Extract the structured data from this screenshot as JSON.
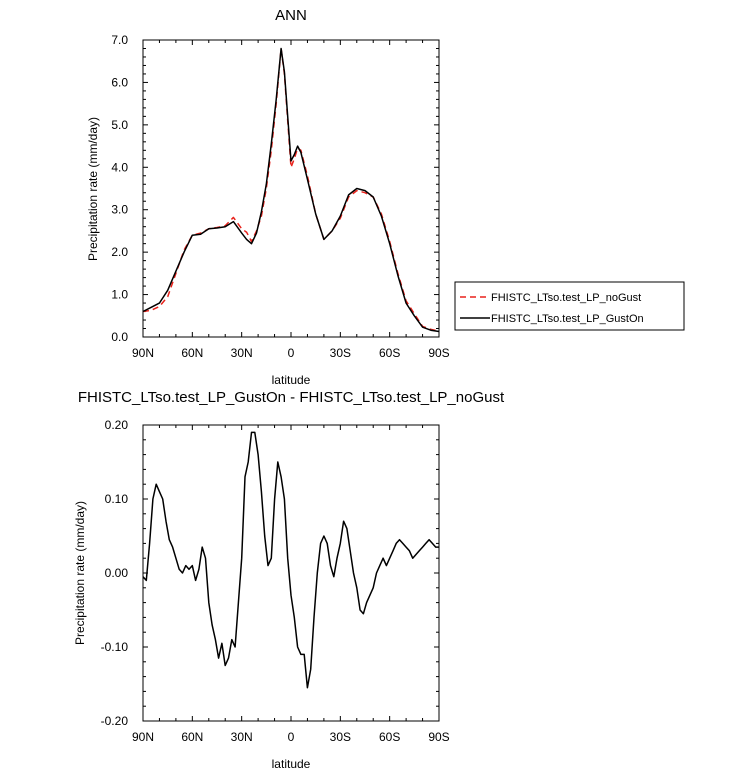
{
  "colors": {
    "noGust": "#e8221b",
    "gustOn": "#000000"
  },
  "chart_data": [
    {
      "type": "line",
      "title": "ANN",
      "xlabel": "latitude",
      "ylabel": "Precipitation rate (mm/day)",
      "xlim": [
        90,
        -90
      ],
      "ylim": [
        0,
        7
      ],
      "xticks": [
        90,
        60,
        30,
        0,
        -30,
        -60,
        -90
      ],
      "xtick_labels": [
        "90N",
        "60N",
        "30N",
        "0",
        "30S",
        "60S",
        "90S"
      ],
      "yticks": [
        0,
        1,
        2,
        3,
        4,
        5,
        6,
        7
      ],
      "ytick_labels": [
        "0.0",
        "1.0",
        "2.0",
        "3.0",
        "4.0",
        "5.0",
        "6.0",
        "7.0"
      ],
      "grid": false,
      "legend_position": "right",
      "x": [
        90,
        85,
        80,
        75,
        70,
        65,
        60,
        55,
        50,
        45,
        40,
        35,
        30,
        27,
        24,
        21,
        18,
        15,
        12,
        9,
        6,
        4,
        2,
        0,
        -2,
        -4,
        -6,
        -10,
        -15,
        -20,
        -25,
        -30,
        -35,
        -40,
        -45,
        -50,
        -55,
        -60,
        -65,
        -70,
        -75,
        -80,
        -85,
        -90
      ],
      "series": [
        {
          "name": "FHISTC_LTso.test_LP_noGust",
          "style": "dashed",
          "color": "#e8221b",
          "values": [
            0.6,
            0.63,
            0.72,
            0.95,
            1.5,
            2.05,
            2.4,
            2.45,
            2.55,
            2.58,
            2.62,
            2.82,
            2.55,
            2.47,
            2.25,
            2.5,
            2.85,
            3.5,
            4.4,
            5.5,
            6.8,
            6.2,
            5.1,
            4.0,
            4.2,
            4.45,
            4.4,
            3.8,
            2.9,
            2.3,
            2.5,
            2.8,
            3.3,
            3.45,
            3.4,
            3.3,
            2.9,
            2.25,
            1.5,
            0.85,
            0.55,
            0.25,
            0.18,
            0.14
          ]
        },
        {
          "name": "FHISTC_LTso.test_LP_GustOn",
          "style": "solid",
          "color": "#000000",
          "values": [
            0.6,
            0.7,
            0.8,
            1.1,
            1.55,
            2.0,
            2.4,
            2.42,
            2.55,
            2.57,
            2.6,
            2.72,
            2.45,
            2.3,
            2.2,
            2.45,
            2.95,
            3.6,
            4.55,
            5.6,
            6.8,
            6.25,
            5.2,
            4.15,
            4.3,
            4.5,
            4.35,
            3.72,
            2.9,
            2.3,
            2.5,
            2.85,
            3.35,
            3.5,
            3.45,
            3.3,
            2.85,
            2.2,
            1.45,
            0.8,
            0.5,
            0.23,
            0.16,
            0.13
          ]
        }
      ]
    },
    {
      "type": "line",
      "title": "FHISTC_LTso.test_LP_GustOn - FHISTC_LTso.test_LP_noGust",
      "xlabel": "latitude",
      "ylabel": "Precipitation rate (mm/day)",
      "xlim": [
        90,
        -90
      ],
      "ylim": [
        -0.2,
        0.2
      ],
      "xticks": [
        90,
        60,
        30,
        0,
        -30,
        -60,
        -90
      ],
      "xtick_labels": [
        "90N",
        "60N",
        "30N",
        "0",
        "30S",
        "60S",
        "90S"
      ],
      "yticks": [
        -0.2,
        -0.1,
        0.0,
        0.1,
        0.2
      ],
      "ytick_labels": [
        "-0.20",
        "-0.10",
        "0.00",
        "0.10",
        "0.20"
      ],
      "grid": false,
      "x": [
        90,
        88,
        86,
        84,
        82,
        80,
        78,
        76,
        74,
        72,
        70,
        68,
        66,
        64,
        62,
        60,
        58,
        56,
        54,
        52,
        50,
        48,
        46,
        44,
        42,
        40,
        38,
        36,
        34,
        32,
        30,
        28,
        26,
        24,
        22,
        20,
        18,
        16,
        14,
        12,
        10,
        8,
        6,
        4,
        2,
        0,
        -2,
        -4,
        -6,
        -8,
        -10,
        -12,
        -14,
        -16,
        -18,
        -20,
        -22,
        -24,
        -26,
        -28,
        -30,
        -32,
        -34,
        -36,
        -38,
        -40,
        -42,
        -44,
        -46,
        -48,
        -50,
        -52,
        -54,
        -56,
        -58,
        -60,
        -62,
        -64,
        -66,
        -68,
        -70,
        -72,
        -74,
        -76,
        -78,
        -80,
        -82,
        -84,
        -86,
        -88,
        -90
      ],
      "series": [
        {
          "name": "",
          "style": "solid",
          "color": "#000000",
          "values": [
            -0.005,
            -0.01,
            0.04,
            0.1,
            0.12,
            0.11,
            0.1,
            0.07,
            0.045,
            0.035,
            0.02,
            0.005,
            0.0,
            0.01,
            0.005,
            0.01,
            -0.01,
            0.005,
            0.035,
            0.02,
            -0.04,
            -0.07,
            -0.09,
            -0.115,
            -0.095,
            -0.125,
            -0.115,
            -0.09,
            -0.1,
            -0.04,
            0.02,
            0.13,
            0.15,
            0.19,
            0.19,
            0.16,
            0.11,
            0.05,
            0.01,
            0.02,
            0.1,
            0.15,
            0.13,
            0.1,
            0.02,
            -0.03,
            -0.06,
            -0.1,
            -0.11,
            -0.11,
            -0.155,
            -0.13,
            -0.06,
            0.0,
            0.04,
            0.05,
            0.04,
            0.01,
            -0.005,
            0.02,
            0.04,
            0.07,
            0.06,
            0.03,
            0.0,
            -0.02,
            -0.05,
            -0.055,
            -0.04,
            -0.03,
            -0.02,
            0.0,
            0.01,
            0.02,
            0.01,
            0.02,
            0.03,
            0.04,
            0.045,
            0.04,
            0.035,
            0.03,
            0.02,
            0.025,
            0.03,
            0.035,
            0.04,
            0.045,
            0.04,
            0.035,
            0.035
          ]
        }
      ]
    }
  ]
}
